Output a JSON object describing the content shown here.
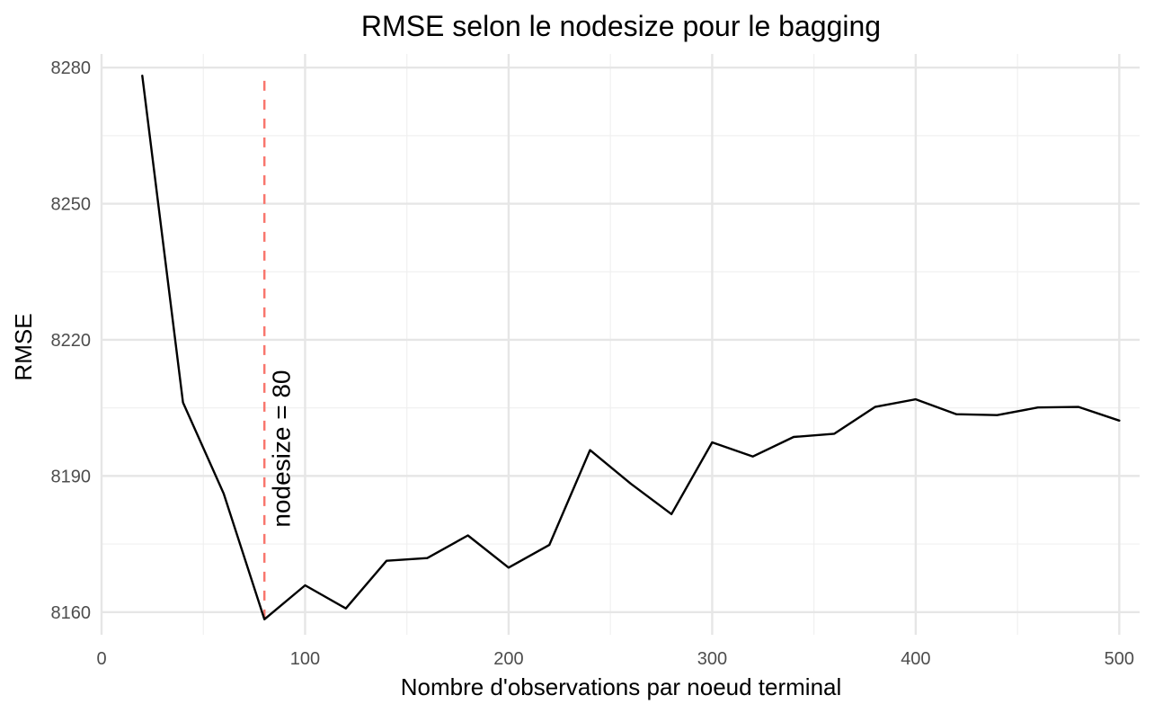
{
  "chart_data": {
    "type": "line",
    "title": "RMSE selon le nodesize pour le bagging",
    "xlabel": "Nombre d'observations par noeud terminal",
    "ylabel": "RMSE",
    "xlim": [
      0,
      510
    ],
    "ylim": [
      8155,
      8283
    ],
    "x_ticks": [
      0,
      100,
      200,
      300,
      400,
      500
    ],
    "y_ticks": [
      8160,
      8190,
      8220,
      8250,
      8280
    ],
    "x_tick_labels": [
      "0",
      "100",
      "200",
      "300",
      "400",
      "500"
    ],
    "y_tick_labels": [
      "8160",
      "8190",
      "8220",
      "8250",
      "8280"
    ],
    "grid": true,
    "series": [
      {
        "color": "#000000",
        "x": [
          20,
          40,
          60,
          80,
          100,
          120,
          140,
          160,
          180,
          200,
          220,
          240,
          260,
          280,
          300,
          320,
          340,
          360,
          380,
          400,
          420,
          440,
          460,
          480,
          500
        ],
        "y": [
          8278.2,
          8206.2,
          8186.1,
          8158.4,
          8165.9,
          8160.8,
          8171.3,
          8171.9,
          8176.9,
          8169.8,
          8174.8,
          8195.7,
          8188.3,
          8181.6,
          8197.4,
          8194.3,
          8198.6,
          8199.3,
          8205.2,
          8206.9,
          8203.6,
          8203.4,
          8205.1,
          8205.2,
          8202.2
        ]
      }
    ],
    "vline": {
      "x": 80,
      "y_from": 8158.4,
      "y_to": 8278.2,
      "color": "#F8766D",
      "style": "dashed"
    },
    "annotation": {
      "text": "nodesize = 80",
      "x": 88,
      "y": 8196,
      "rotation": -90
    }
  }
}
